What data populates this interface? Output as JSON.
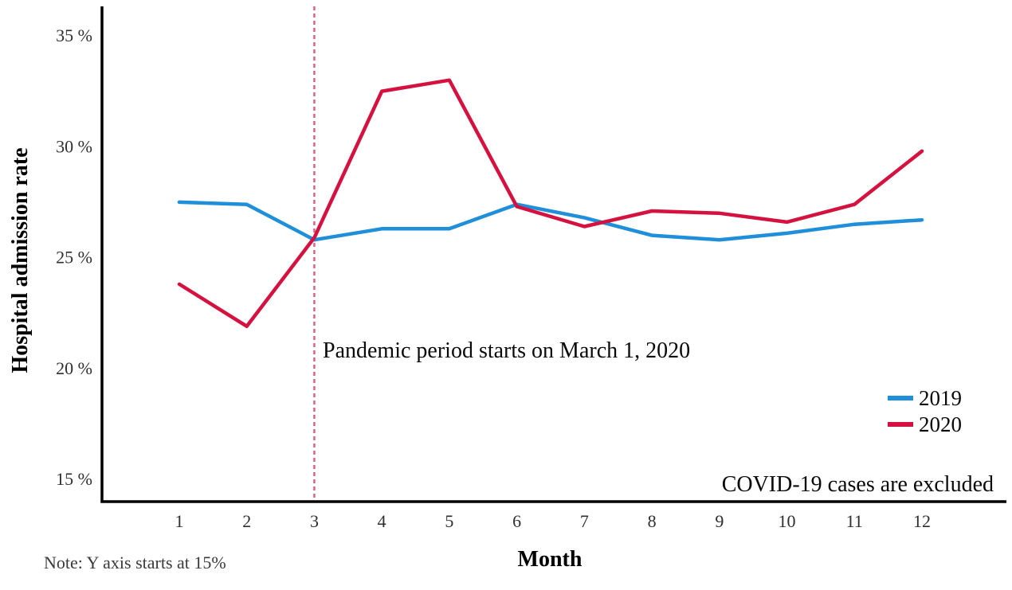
{
  "chart_data": {
    "type": "line",
    "title": "",
    "xlabel": "Month",
    "ylabel": "Hospital admission rate",
    "x": [
      1,
      2,
      3,
      4,
      5,
      6,
      7,
      8,
      9,
      10,
      11,
      12
    ],
    "series": [
      {
        "name": "2019",
        "color": "#1e8fd8",
        "values": [
          27.5,
          27.4,
          25.8,
          26.3,
          26.3,
          27.4,
          26.8,
          26.0,
          25.8,
          26.1,
          26.5,
          26.7
        ]
      },
      {
        "name": "2020",
        "color": "#d5123f",
        "values": [
          23.8,
          21.9,
          25.9,
          32.5,
          33.0,
          27.3,
          26.4,
          27.1,
          27.0,
          26.6,
          27.4,
          29.8
        ]
      }
    ],
    "yticks": [
      {
        "value": 15,
        "label": "15 %"
      },
      {
        "value": 20,
        "label": "20 %"
      },
      {
        "value": 25,
        "label": "25 %"
      },
      {
        "value": 30,
        "label": "30 %"
      },
      {
        "value": 35,
        "label": "35 %"
      }
    ],
    "ylim": [
      14,
      36.3
    ],
    "xlim": [
      0,
      13.2
    ],
    "grid": false,
    "legend_position": "right-middle",
    "reference_line": {
      "x": 3,
      "style": "dashed",
      "color": "#dd6480",
      "label": "Pandemic period starts on March 1, 2020"
    },
    "annotations": {
      "pandemic": "Pandemic period starts on March 1, 2020",
      "covid_exclusion": "COVID-19 cases are excluded",
      "note": "Note: Y axis starts at 15%"
    }
  }
}
